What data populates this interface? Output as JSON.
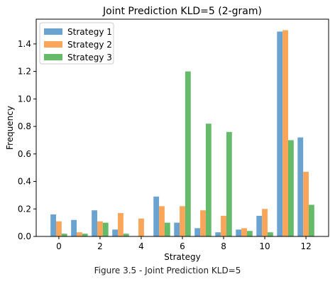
{
  "chart_data": {
    "type": "bar",
    "title": "Joint Prediction KLD=5 (2-gram)",
    "xlabel": "Strategy",
    "ylabel": "Frequency",
    "x": [
      0,
      1,
      2,
      3,
      4,
      5,
      6,
      7,
      8,
      9,
      10,
      11,
      12
    ],
    "xticks": [
      "0",
      "2",
      "4",
      "6",
      "8",
      "10",
      "12"
    ],
    "xtick_values": [
      0,
      2,
      4,
      6,
      8,
      10,
      12
    ],
    "xlim": [
      -1.1,
      13.1
    ],
    "ylim": [
      0,
      1.58
    ],
    "yticks": [
      "0.0",
      "0.2",
      "0.4",
      "0.6",
      "0.8",
      "1.0",
      "1.2",
      "1.4"
    ],
    "ytick_values": [
      0,
      0.2,
      0.4,
      0.6,
      0.8,
      1.0,
      1.2,
      1.4
    ],
    "grid": false,
    "legend_position": "top-left",
    "series": [
      {
        "name": "Strategy 1",
        "color": "#6ba3d0",
        "values": [
          0.16,
          0.12,
          0.19,
          0.05,
          0.0,
          0.29,
          0.1,
          0.06,
          0.03,
          0.05,
          0.15,
          1.49,
          0.72
        ]
      },
      {
        "name": "Strategy 2",
        "color": "#f9a65a",
        "values": [
          0.11,
          0.03,
          0.11,
          0.17,
          0.13,
          0.22,
          0.22,
          0.19,
          0.15,
          0.06,
          0.2,
          1.5,
          0.47
        ]
      },
      {
        "name": "Strategy 3",
        "color": "#66bb6a",
        "values": [
          0.02,
          0.02,
          0.1,
          0.02,
          0.0,
          0.1,
          1.2,
          0.82,
          0.76,
          0.04,
          0.03,
          0.7,
          0.23
        ]
      }
    ]
  },
  "caption": "Figure 3.5 - Joint Prediction KLD=5"
}
